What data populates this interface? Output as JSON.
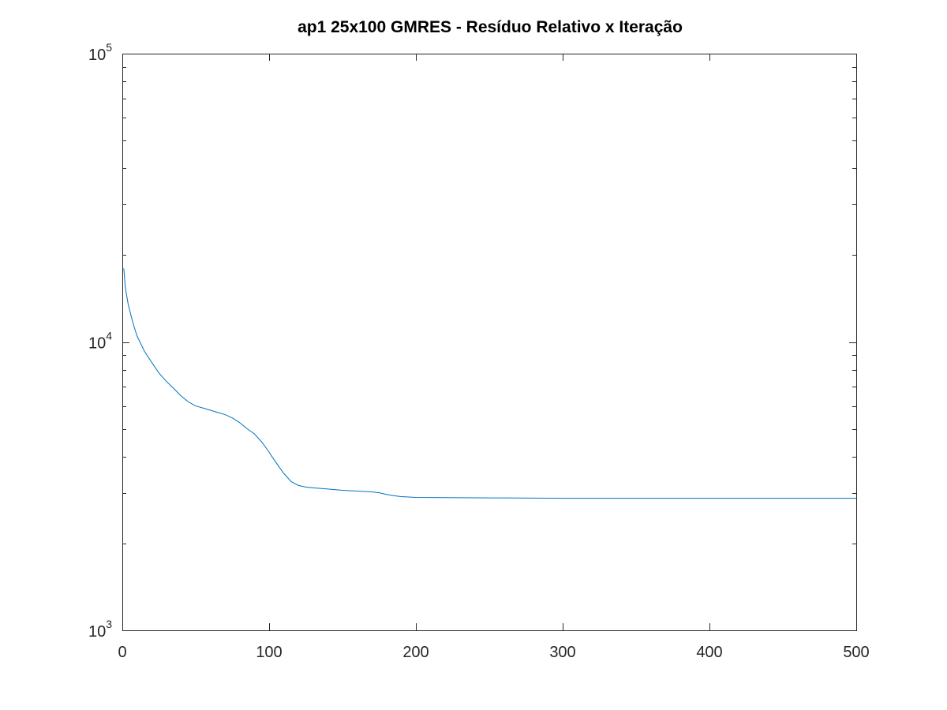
{
  "chart_data": {
    "type": "line",
    "title": "ap1 25x100 GMRES - Resíduo Relativo x Iteração",
    "xlabel": "",
    "ylabel": "",
    "xlim": [
      0,
      500
    ],
    "ylim": [
      1000,
      100000
    ],
    "yscale": "log",
    "grid": false,
    "x_ticks": [
      {
        "value": 0,
        "label": "0"
      },
      {
        "value": 100,
        "label": "100"
      },
      {
        "value": 200,
        "label": "200"
      },
      {
        "value": 300,
        "label": "300"
      },
      {
        "value": 400,
        "label": "400"
      },
      {
        "value": 500,
        "label": "500"
      }
    ],
    "y_ticks": [
      {
        "value": 1000,
        "base": "10",
        "exp": "3"
      },
      {
        "value": 10000,
        "base": "10",
        "exp": "4"
      },
      {
        "value": 100000,
        "base": "10",
        "exp": "5"
      }
    ],
    "series": [
      {
        "color": "#0072bd",
        "x": [
          1,
          2,
          4,
          6,
          8,
          10,
          15,
          20,
          25,
          30,
          35,
          40,
          45,
          50,
          55,
          60,
          65,
          70,
          75,
          80,
          85,
          90,
          95,
          100,
          102,
          105,
          110,
          115,
          120,
          125,
          130,
          140,
          150,
          160,
          170,
          175,
          180,
          185,
          190,
          200,
          250,
          300,
          350,
          400,
          450,
          500
        ],
        "y": [
          18000,
          15500,
          13500,
          12300,
          11300,
          10500,
          9300,
          8500,
          7800,
          7300,
          6900,
          6500,
          6200,
          6000,
          5900,
          5800,
          5700,
          5600,
          5450,
          5250,
          5000,
          4800,
          4500,
          4150,
          4000,
          3800,
          3500,
          3280,
          3180,
          3140,
          3120,
          3090,
          3060,
          3040,
          3020,
          3000,
          2960,
          2930,
          2910,
          2890,
          2880,
          2870,
          2870,
          2870,
          2870,
          2870
        ]
      }
    ]
  }
}
